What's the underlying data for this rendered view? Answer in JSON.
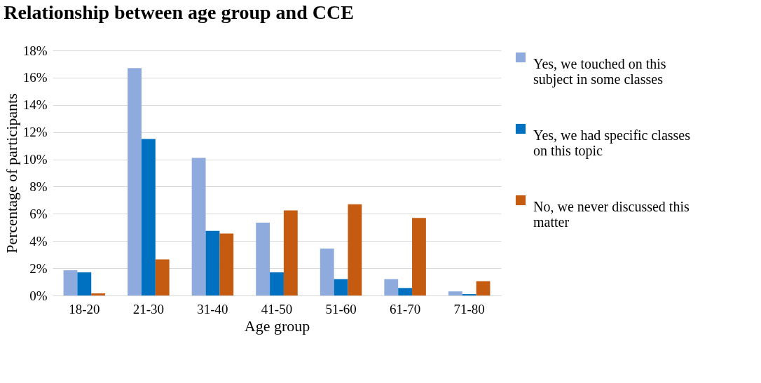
{
  "chart_data": {
    "type": "bar",
    "title": "Relationship between age group and CCE",
    "xlabel": "Age group",
    "ylabel": "Percentage of participants",
    "categories": [
      "18-20",
      "21-30",
      "31-40",
      "41-50",
      "51-60",
      "61-70",
      "71-80"
    ],
    "series": [
      {
        "name": "Yes, we touched on this subject in some classes",
        "color": "#8faadc",
        "values": [
          1.85,
          16.7,
          10.1,
          5.35,
          3.45,
          1.2,
          0.3
        ]
      },
      {
        "name": "Yes, we had specific classes on this topic",
        "color": "#0070c0",
        "values": [
          1.7,
          11.5,
          4.75,
          1.7,
          1.2,
          0.55,
          0.1
        ]
      },
      {
        "name": "No, we never discussed this matter",
        "color": "#c55a11",
        "values": [
          0.15,
          2.65,
          4.55,
          6.25,
          6.7,
          5.7,
          1.05
        ]
      }
    ],
    "ylim": [
      0,
      18
    ],
    "yticks": [
      {
        "value": 0,
        "label": "0%"
      },
      {
        "value": 2,
        "label": "2%"
      },
      {
        "value": 4,
        "label": "4%"
      },
      {
        "value": 6,
        "label": "6%"
      },
      {
        "value": 8,
        "label": "8%"
      },
      {
        "value": 10,
        "label": "10%"
      },
      {
        "value": 12,
        "label": "12%"
      },
      {
        "value": 14,
        "label": "14%"
      },
      {
        "value": 16,
        "label": "16%"
      },
      {
        "value": 18,
        "label": "18%"
      }
    ],
    "grid": "y",
    "legend": "right"
  }
}
